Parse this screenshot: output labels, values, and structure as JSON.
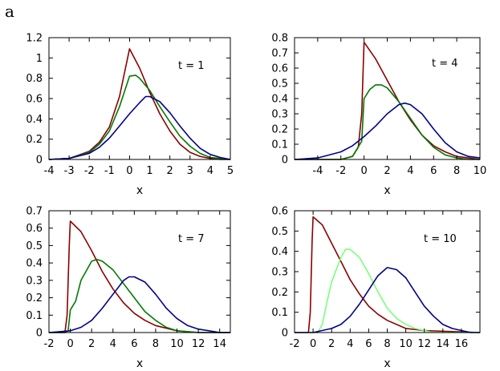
{
  "figure_label": "a",
  "colors": {
    "red": "#8b0000",
    "green": "#007a00",
    "green_light": "#7cff7c",
    "blue": "#00008b",
    "blue_noise": "#8080ff"
  },
  "chart_data": [
    {
      "type": "line",
      "annotation": "t = 1",
      "xlabel": "x",
      "ylabel": "",
      "xlim": [
        -4,
        5
      ],
      "ylim": [
        0,
        1.2
      ],
      "xticks": [
        -4,
        -3,
        -2,
        -1,
        0,
        1,
        2,
        3,
        4,
        5
      ],
      "xtick_labels": [
        "-4",
        "-3",
        "-2",
        "-1",
        "0",
        "1",
        "2",
        "3",
        "4",
        "5"
      ],
      "yticks": [
        0,
        0.2,
        0.4,
        0.6,
        0.8,
        1,
        1.2
      ],
      "ytick_labels": [
        "0",
        "0.2",
        "0.4",
        "0.6",
        "0.8",
        "1",
        "1.2"
      ],
      "grid": false,
      "series": [
        {
          "color": "#8b0000",
          "x": [
            -4,
            -3,
            -2,
            -1.5,
            -1,
            -0.5,
            0,
            0.5,
            1,
            1.5,
            2,
            2.5,
            3,
            3.5,
            4,
            4.5,
            5
          ],
          "y": [
            0,
            0.01,
            0.08,
            0.17,
            0.32,
            0.62,
            1.09,
            0.9,
            0.66,
            0.45,
            0.28,
            0.15,
            0.07,
            0.03,
            0.01,
            0,
            0
          ]
        },
        {
          "color": "#007a00",
          "x": [
            -4,
            -3,
            -2,
            -1.5,
            -1,
            -0.5,
            0,
            0.3,
            0.5,
            1,
            1.5,
            2,
            2.5,
            3,
            3.5,
            4,
            4.5,
            5
          ],
          "y": [
            0,
            0.01,
            0.07,
            0.15,
            0.28,
            0.52,
            0.82,
            0.83,
            0.8,
            0.68,
            0.52,
            0.37,
            0.23,
            0.13,
            0.06,
            0.02,
            0.01,
            0
          ]
        },
        {
          "color": "#00008b",
          "x": [
            -4,
            -3,
            -2,
            -1.5,
            -1,
            -0.5,
            0,
            0.5,
            0.8,
            1,
            1.5,
            2,
            2.5,
            3,
            3.5,
            4,
            4.5,
            5
          ],
          "y": [
            0,
            0.01,
            0.06,
            0.12,
            0.21,
            0.33,
            0.45,
            0.56,
            0.62,
            0.62,
            0.57,
            0.46,
            0.33,
            0.21,
            0.11,
            0.05,
            0.02,
            0
          ]
        }
      ]
    },
    {
      "type": "line",
      "annotation": "t = 4",
      "xlabel": "x",
      "ylabel": "",
      "xlim": [
        -6,
        10
      ],
      "ylim": [
        0,
        0.8
      ],
      "xticks": [
        -4,
        -2,
        0,
        2,
        4,
        6,
        8,
        10
      ],
      "xtick_labels": [
        "-4",
        "-2",
        "0",
        "2",
        "4",
        "6",
        "8",
        "10"
      ],
      "yticks": [
        0,
        0.1,
        0.2,
        0.3,
        0.4,
        0.5,
        0.6,
        0.7,
        0.8
      ],
      "ytick_labels": [
        "0",
        "0.1",
        "0.2",
        "0.3",
        "0.4",
        "0.5",
        "0.6",
        "0.7",
        "0.8"
      ],
      "grid": false,
      "series": [
        {
          "color": "#8b0000",
          "x": [
            -6,
            -2,
            -1,
            -0.5,
            -0.2,
            0,
            1,
            2,
            3,
            4,
            5,
            6,
            7,
            8,
            9,
            10
          ],
          "y": [
            0,
            0,
            0.02,
            0.08,
            0.3,
            0.77,
            0.66,
            0.52,
            0.38,
            0.26,
            0.16,
            0.09,
            0.05,
            0.02,
            0.01,
            0
          ]
        },
        {
          "color": "#007a00",
          "x": [
            -6,
            -2,
            -1,
            -0.2,
            0,
            0.5,
            1,
            1.5,
            2,
            3,
            4,
            5,
            6,
            7,
            8,
            9,
            10
          ],
          "y": [
            0,
            0,
            0.02,
            0.12,
            0.4,
            0.46,
            0.49,
            0.49,
            0.47,
            0.38,
            0.27,
            0.16,
            0.08,
            0.03,
            0.01,
            0,
            0
          ]
        },
        {
          "color": "#00008b",
          "x": [
            -6,
            -4,
            -2,
            -1,
            0,
            1,
            2,
            3,
            3.5,
            4,
            5,
            6,
            7,
            8,
            9,
            10
          ],
          "y": [
            0,
            0.01,
            0.05,
            0.09,
            0.15,
            0.22,
            0.3,
            0.36,
            0.37,
            0.36,
            0.3,
            0.2,
            0.11,
            0.05,
            0.02,
            0.01
          ]
        }
      ]
    },
    {
      "type": "line",
      "annotation": "t = 7",
      "xlabel": "x",
      "ylabel": "",
      "xlim": [
        -2,
        15
      ],
      "ylim": [
        0,
        0.7
      ],
      "xticks": [
        -2,
        0,
        2,
        4,
        6,
        8,
        10,
        12,
        14
      ],
      "xtick_labels": [
        "-2",
        "0",
        "2",
        "4",
        "6",
        "8",
        "10",
        "12",
        "14"
      ],
      "yticks": [
        0,
        0.1,
        0.2,
        0.3,
        0.4,
        0.5,
        0.6,
        0.7
      ],
      "ytick_labels": [
        "0",
        "0.1",
        "0.2",
        "0.3",
        "0.4",
        "0.5",
        "0.6",
        "0.7"
      ],
      "grid": false,
      "series": [
        {
          "color": "#8b0000",
          "x": [
            -2,
            -0.5,
            -0.3,
            -0.1,
            0,
            1,
            2,
            3,
            4,
            5,
            6,
            7,
            8,
            10,
            12,
            15
          ],
          "y": [
            0,
            0,
            0.1,
            0.5,
            0.64,
            0.58,
            0.47,
            0.35,
            0.25,
            0.17,
            0.11,
            0.07,
            0.04,
            0.01,
            0,
            0
          ]
        },
        {
          "color": "#007a00",
          "x": [
            -2,
            -0.5,
            -0.2,
            0,
            0.5,
            1,
            2,
            2.5,
            3,
            4,
            5,
            6,
            7,
            8,
            9,
            10,
            12,
            15
          ],
          "y": [
            0,
            0,
            0.01,
            0.13,
            0.18,
            0.3,
            0.41,
            0.42,
            0.41,
            0.36,
            0.28,
            0.2,
            0.12,
            0.07,
            0.03,
            0.01,
            0,
            0
          ]
        },
        {
          "color": "#00008b",
          "x": [
            -2,
            0,
            1,
            2,
            3,
            4,
            5,
            5.5,
            6,
            7,
            8,
            9,
            10,
            11,
            12,
            13,
            14,
            15
          ],
          "y": [
            0,
            0.01,
            0.03,
            0.07,
            0.14,
            0.22,
            0.3,
            0.32,
            0.32,
            0.29,
            0.22,
            0.14,
            0.08,
            0.04,
            0.02,
            0.01,
            0,
            0
          ]
        }
      ]
    },
    {
      "type": "line",
      "annotation": "t = 10",
      "xlabel": "x",
      "ylabel": "",
      "xlim": [
        -2,
        18
      ],
      "ylim": [
        0,
        0.6
      ],
      "xticks": [
        -2,
        0,
        2,
        4,
        6,
        8,
        10,
        12,
        14,
        16
      ],
      "xtick_labels": [
        "-2",
        "0",
        "2",
        "4",
        "6",
        "8",
        "10",
        "12",
        "14",
        "16"
      ],
      "yticks": [
        0,
        0.1,
        0.2,
        0.3,
        0.4,
        0.5,
        0.6
      ],
      "ytick_labels": [
        "0",
        "0.1",
        "0.2",
        "0.3",
        "0.4",
        "0.5",
        "0.6"
      ],
      "grid": false,
      "series": [
        {
          "color": "#8b0000",
          "x": [
            -2,
            -0.5,
            -0.3,
            -0.1,
            0,
            1,
            2,
            3,
            4,
            5,
            6,
            7,
            8,
            10,
            12,
            18
          ],
          "y": [
            0,
            0,
            0.1,
            0.45,
            0.57,
            0.53,
            0.44,
            0.35,
            0.26,
            0.19,
            0.13,
            0.09,
            0.06,
            0.02,
            0.01,
            0
          ]
        },
        {
          "color": "#7cff7c",
          "x": [
            -2,
            0.5,
            1,
            1.5,
            2,
            3,
            3.5,
            4,
            5,
            6,
            7,
            8,
            9,
            10,
            11,
            12,
            13,
            18
          ],
          "y": [
            0,
            0,
            0.04,
            0.15,
            0.25,
            0.37,
            0.41,
            0.41,
            0.37,
            0.29,
            0.2,
            0.12,
            0.07,
            0.04,
            0.02,
            0.01,
            0,
            0
          ]
        },
        {
          "color": "#00008b",
          "x": [
            -2,
            0,
            2,
            3,
            4,
            5,
            6,
            7,
            8,
            9,
            10,
            11,
            12,
            13,
            14,
            15,
            16,
            17,
            18
          ],
          "y": [
            0,
            0,
            0.02,
            0.04,
            0.08,
            0.14,
            0.21,
            0.28,
            0.32,
            0.31,
            0.27,
            0.2,
            0.13,
            0.08,
            0.04,
            0.02,
            0.01,
            0,
            0
          ]
        }
      ]
    }
  ]
}
